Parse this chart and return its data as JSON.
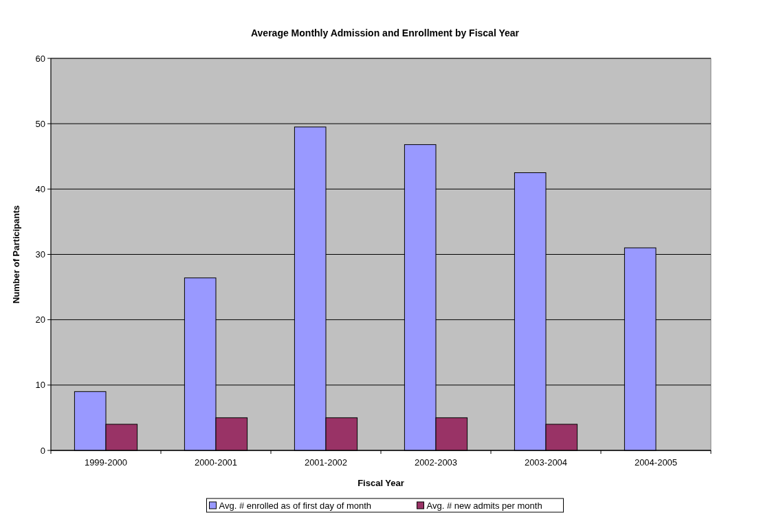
{
  "chart_data": {
    "type": "bar",
    "title": "Average Monthly Admission and Enrollment by Fiscal Year",
    "xlabel": "Fiscal Year",
    "ylabel": "Number of Participants",
    "categories": [
      "1999-2000",
      "2000-2001",
      "2001-2002",
      "2002-2003",
      "2003-2004",
      "2004-2005"
    ],
    "series": [
      {
        "name": "Avg. # enrolled as of first day of month",
        "color": "#9999ff",
        "values": [
          9,
          26.4,
          49.5,
          46.8,
          42.5,
          31
        ]
      },
      {
        "name": "Avg. # new admits per month",
        "color": "#993366",
        "values": [
          4,
          5,
          5,
          5,
          4,
          null
        ]
      }
    ],
    "ylim": [
      0,
      60
    ],
    "yticks": [
      0,
      10,
      20,
      30,
      40,
      50,
      60
    ],
    "grid": "y",
    "legend": "bottom"
  }
}
